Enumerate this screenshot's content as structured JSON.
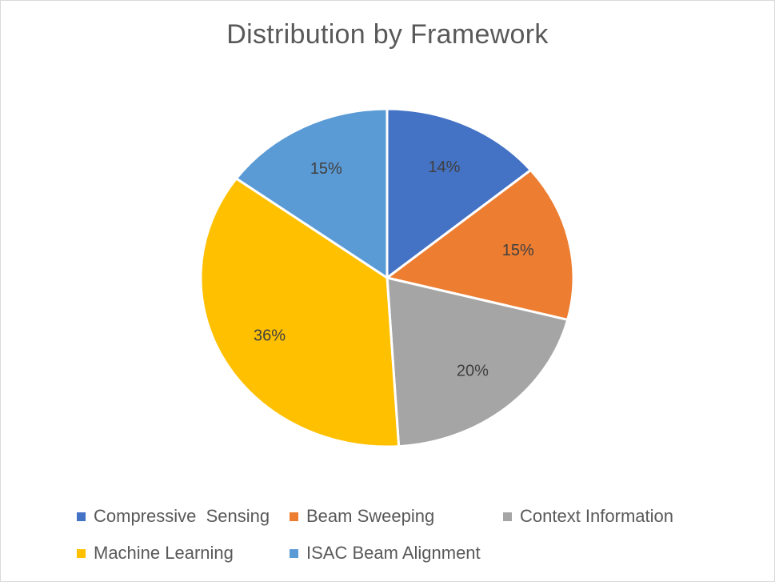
{
  "chart_data": {
    "type": "pie",
    "title": "Distribution by Framework",
    "slices": [
      {
        "label": "Compressive  Sensing",
        "value": 14,
        "display": "14%",
        "color": "#4472C4"
      },
      {
        "label": "Beam Sweeping",
        "value": 15,
        "display": "15%",
        "color": "#ED7D31"
      },
      {
        "label": "Context Information",
        "value": 20,
        "display": "20%",
        "color": "#A5A5A5"
      },
      {
        "label": "Machine Learning",
        "value": 36,
        "display": "36%",
        "color": "#FFC000"
      },
      {
        "label": "ISAC Beam Alignment",
        "value": 15,
        "display": "15%",
        "color": "#5B9BD5"
      }
    ],
    "legend_placement": "bottom"
  }
}
